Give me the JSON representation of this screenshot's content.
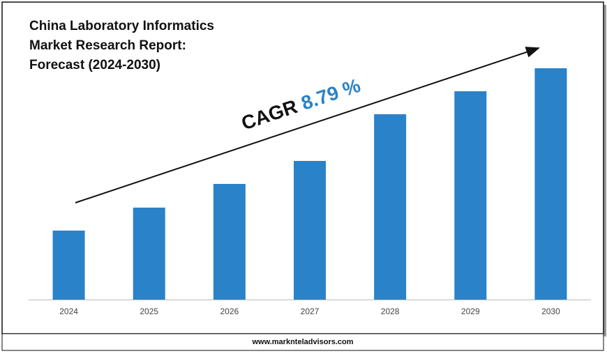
{
  "chart_data": {
    "type": "bar",
    "title_lines": [
      "China Laboratory Informatics",
      "Market Research Report:",
      "Forecast (2024-2030)"
    ],
    "annotation": {
      "label": "CAGR",
      "value": "8.79 %"
    },
    "categories": [
      "2024",
      "2025",
      "2026",
      "2027",
      "2028",
      "2029",
      "2030"
    ],
    "values": [
      99,
      132,
      166,
      199,
      266,
      299,
      332
    ],
    "color": "#2a82c9",
    "ylim": [
      0,
      340
    ],
    "footer": "www.marknteladvisors.com"
  }
}
